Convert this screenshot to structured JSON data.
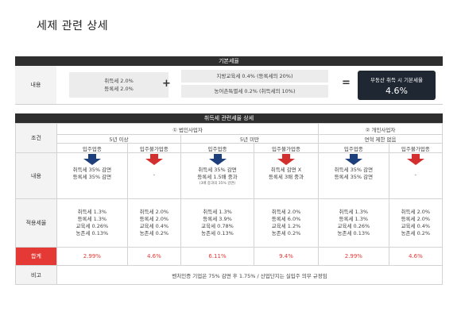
{
  "title": "세제 관련 상세",
  "base": {
    "header": "기본세율",
    "label": "내용",
    "box_a": [
      "취득세 2.0%",
      "등록세 2.0%"
    ],
    "plus": "+",
    "box_b": "지방교육세 0.4% (등록세의 20%)",
    "box_c": "농어촌특별세 0.2% (취득세의 10%)",
    "equals": "=",
    "result_label": "부동산 취득 시 기본세율",
    "result_value": "4.6%"
  },
  "detail": {
    "header": "취득세 관련세율 상세",
    "labels": {
      "condition": "조건",
      "content": "내용",
      "rates": "적용세율",
      "total": "합계",
      "note": "비고"
    },
    "groups": [
      "① 법인사업자",
      "② 개인사업자"
    ],
    "subgroups": [
      "5년 이상",
      "5년 미만",
      "연혁 제한 없음"
    ],
    "columns": [
      {
        "type": "입주업종",
        "arrow": "blue",
        "content": [
          "취득세 35% 감면",
          "등록세 35% 감면"
        ],
        "rates": [
          "취득세 1.3%",
          "등록세 1.3%",
          "교육세 0.26%",
          "농존세 0.13%"
        ],
        "total": "2.99%"
      },
      {
        "type": "입주불가업종",
        "arrow": "red",
        "content": [
          "-"
        ],
        "rates": [
          "취득세 2.0%",
          "등록세 2.0%",
          "교육세 0.4%",
          "농존세 0.2%"
        ],
        "total": "4.6%"
      },
      {
        "type": "입주업종",
        "arrow": "blue",
        "content": [
          "취득세 35% 감면",
          "등록세 1.5배 중과"
        ],
        "sub": "(3배 중과의 35% 감면)",
        "rates": [
          "취득세 1.3%",
          "등록세 3.9%",
          "교육세 0.78%",
          "농존세 0.13%"
        ],
        "total": "6.11%"
      },
      {
        "type": "입주불가업종",
        "arrow": "red",
        "content": [
          "취득세 감면 X",
          "등록세 3배 중과"
        ],
        "rates": [
          "취득세 2.0%",
          "등록세 6.0%",
          "교육세 1.2%",
          "농존세 0.2%"
        ],
        "total": "9.4%"
      },
      {
        "type": "입주업종",
        "arrow": "blue",
        "content": [
          "취득세 35% 감면",
          "등록세 35% 감면"
        ],
        "rates": [
          "취득세 1.3%",
          "등록세 1.3%",
          "교육세 0.26%",
          "농존세 0.13%"
        ],
        "total": "2.99%"
      },
      {
        "type": "입주불가업종",
        "arrow": "red",
        "content": [
          "-"
        ],
        "rates": [
          "취득세 2.0%",
          "등록세 2.0%",
          "교육세 0.4%",
          "농존세 0.2%"
        ],
        "total": "4.6%"
      }
    ],
    "note": "벤처인증 기업은 75% 감면 후 1.75% / 산업단지는 실입주 의무 규정임",
    "colors": {
      "blue_arrow": "#1d3f7c",
      "red_arrow": "#d32f2f",
      "total_red": "#e53935",
      "header_dark": "#2e2e2e"
    }
  }
}
